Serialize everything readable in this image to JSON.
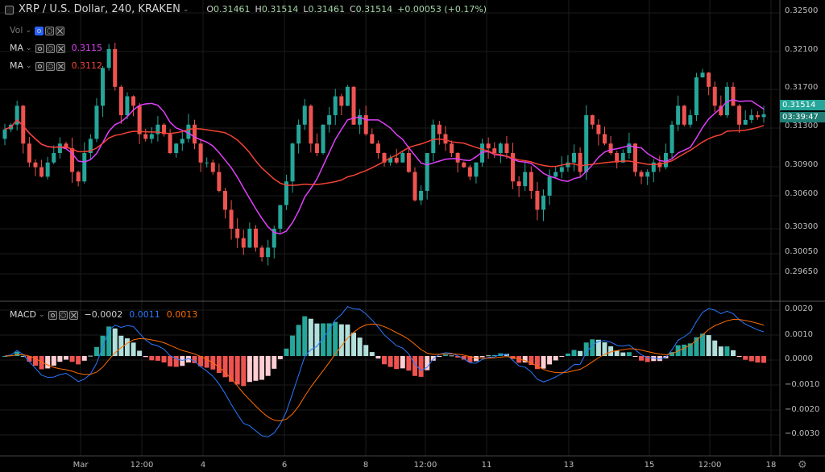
{
  "header": {
    "symbol": "XRP / U.S. Dollar, 240, KRAKEN",
    "o_label": "O",
    "o_val": "0.31461",
    "h_label": "H",
    "h_val": "0.31514",
    "l_label": "L",
    "l_val": "0.31461",
    "c_label": "C",
    "c_val": "0.31514",
    "change": "+0.00053 (+0.17%)"
  },
  "indicators": {
    "vol": {
      "label": "Vol"
    },
    "ma1": {
      "label": "MA",
      "value": "0.3115",
      "color": "#e040fb"
    },
    "ma2": {
      "label": "MA",
      "value": "0.3112",
      "color": "#f44336"
    },
    "macd": {
      "label": "MACD",
      "v1": "−0.0002",
      "v2": "0.0011",
      "v3": "0.0013",
      "c1": "#d0d0d0",
      "c2": "#2979ff",
      "c3": "#ff6d00"
    }
  },
  "price_axis": [
    "0.32500",
    "0.32100",
    "0.31700",
    "0.31300",
    "0.30900",
    "0.30600",
    "0.30300",
    "0.30050",
    "0.29650"
  ],
  "price_tag": {
    "price": "0.31514",
    "countdown": "03:39:47"
  },
  "macd_axis": [
    "0.0020",
    "0.0010",
    "0.0000",
    "−0.0010",
    "−0.0020",
    "−0.0030"
  ],
  "time_axis": [
    "Mar",
    "12:00",
    "4",
    "6",
    "8",
    "12:00",
    "11",
    "13",
    "15",
    "12:00",
    "18"
  ],
  "colors": {
    "up": "#26a69a",
    "down": "#ef5350",
    "ma_fast": "#e040fb",
    "ma_slow": "#f44336",
    "macd_line": "#2979ff",
    "signal_line": "#ff6d00",
    "hist_up": "#26a69a",
    "hist_up_weak": "#b2dfdb",
    "hist_down": "#ef5350",
    "hist_down_weak": "#ffcdd2"
  },
  "chart_data": {
    "type": "candlestick",
    "price_ylim": [
      0.2955,
      0.3265
    ],
    "candles_close": [
      0.3135,
      0.314,
      0.316,
      0.312,
      0.31,
      0.3095,
      0.3085,
      0.31,
      0.311,
      0.312,
      0.3115,
      0.309,
      0.308,
      0.311,
      0.3125,
      0.316,
      0.32,
      0.322,
      0.318,
      0.315,
      0.317,
      0.316,
      0.313,
      0.3125,
      0.313,
      0.314,
      0.313,
      0.311,
      0.312,
      0.3125,
      0.314,
      0.312,
      0.31,
      0.31,
      0.309,
      0.307,
      0.305,
      0.303,
      0.302,
      0.301,
      0.303,
      0.301,
      0.3,
      0.301,
      0.303,
      0.3055,
      0.308,
      0.312,
      0.314,
      0.316,
      0.312,
      0.311,
      0.314,
      0.315,
      0.317,
      0.316,
      0.318,
      0.314,
      0.315,
      0.313,
      0.312,
      0.311,
      0.31,
      0.3105,
      0.31,
      0.311,
      0.309,
      0.306,
      0.307,
      0.311,
      0.314,
      0.313,
      0.312,
      0.311,
      0.31,
      0.3095,
      0.3085,
      0.31,
      0.312,
      0.3115,
      0.311,
      0.312,
      0.311,
      0.308,
      0.3075,
      0.309,
      0.307,
      0.305,
      0.3065,
      0.3085,
      0.309,
      0.3095,
      0.31,
      0.311,
      0.309,
      0.315,
      0.314,
      0.313,
      0.312,
      0.311,
      0.31,
      0.311,
      0.312,
      0.309,
      0.3085,
      0.309,
      0.31,
      0.3095,
      0.311,
      0.314,
      0.316,
      0.314,
      0.315,
      0.319,
      0.3195,
      0.318,
      0.316,
      0.315,
      0.318,
      0.316,
      0.314,
      0.3145,
      0.315,
      0.3148,
      0.3151
    ],
    "ma_fast_value": 0.3115,
    "ma_slow_value": 0.3112,
    "macd_ylim": [
      -0.0036,
      0.0022
    ],
    "macd_last": {
      "macd": 0.0011,
      "signal": 0.0013,
      "hist": -0.0002
    }
  }
}
